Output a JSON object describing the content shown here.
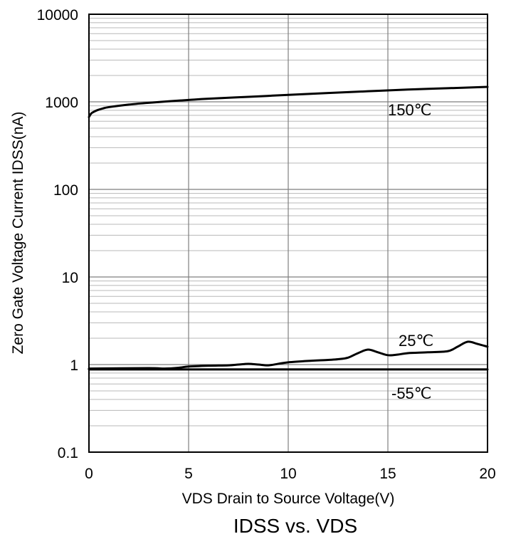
{
  "chart_data": {
    "type": "line",
    "caption": "IDSS vs. VDS",
    "xlabel": "VDS Drain to Source Voltage(V)",
    "ylabel": "Zero Gate Voltage Current IDSS(nA)",
    "xlim": [
      0,
      20
    ],
    "ylim": [
      0.1,
      10000
    ],
    "y_scale": "log",
    "grid": true,
    "x_ticks": [
      0,
      5,
      10,
      15,
      20
    ],
    "x_tick_labels": [
      "0",
      "5",
      "10",
      "15",
      "20"
    ],
    "y_ticks": [
      0.1,
      1,
      10,
      100,
      1000,
      10000
    ],
    "y_tick_labels": [
      "0.1",
      "1",
      "10",
      "100",
      "1000",
      "10000"
    ],
    "series": [
      {
        "name": "150℃",
        "x": [
          0,
          0.1,
          0.2,
          0.4,
          0.7,
          1,
          2,
          3,
          4,
          5,
          6,
          8,
          10,
          12,
          14,
          16,
          18,
          20
        ],
        "y": [
          670,
          730,
          760,
          800,
          840,
          870,
          930,
          975,
          1015,
          1050,
          1085,
          1140,
          1200,
          1260,
          1320,
          1380,
          1430,
          1480
        ]
      },
      {
        "name": "25℃",
        "x": [
          0,
          3,
          3.8,
          4.5,
          5,
          6,
          7,
          7.5,
          8,
          8.5,
          9,
          9.5,
          10,
          11,
          12,
          12.5,
          13,
          13.5,
          14,
          14.5,
          15,
          15.5,
          16,
          17,
          18,
          18.5,
          19,
          19.5,
          20
        ],
        "y": [
          0.9,
          0.91,
          0.9,
          0.92,
          0.95,
          0.97,
          0.98,
          1.0,
          1.02,
          1.0,
          0.98,
          1.02,
          1.06,
          1.1,
          1.13,
          1.15,
          1.2,
          1.35,
          1.48,
          1.38,
          1.28,
          1.3,
          1.35,
          1.38,
          1.42,
          1.6,
          1.82,
          1.72,
          1.6
        ]
      },
      {
        "name": "-55℃",
        "x": [
          0,
          5,
          10,
          15,
          20
        ],
        "y": [
          0.88,
          0.88,
          0.88,
          0.88,
          0.88
        ]
      }
    ]
  }
}
